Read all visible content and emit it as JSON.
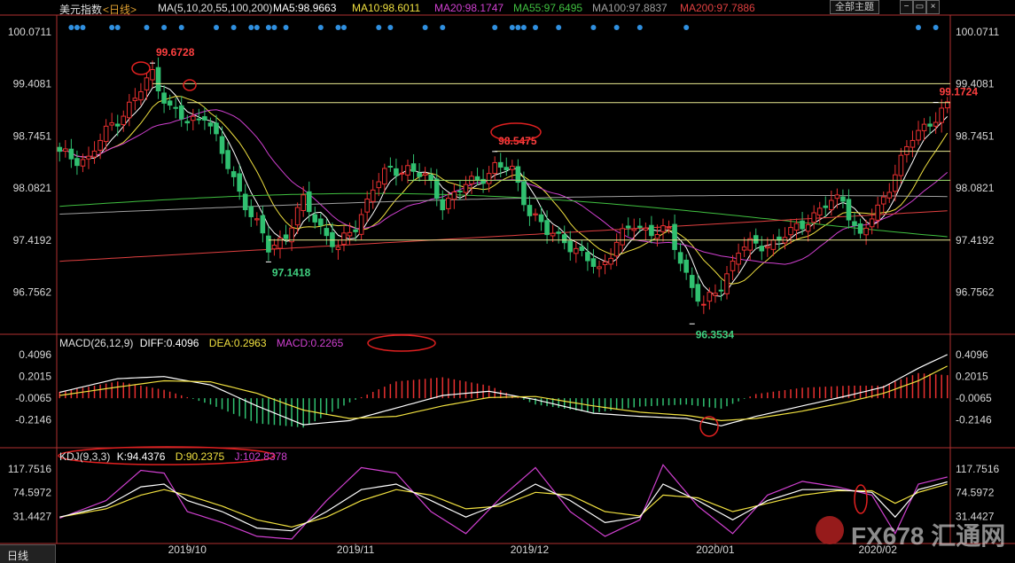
{
  "header": {
    "symbol": "美元指数",
    "period": "<日线>",
    "ma_label": "MA(5,10,20,55,100,200)",
    "ma_values": [
      {
        "text": "MA5:98.9663",
        "color": "#ffffff"
      },
      {
        "text": "MA10:98.6011",
        "color": "#f0e040"
      },
      {
        "text": "MA20:98.1747",
        "color": "#d040d0"
      },
      {
        "text": "MA55:97.6495",
        "color": "#40c040"
      },
      {
        "text": "MA100:97.8837",
        "color": "#a0a0a0"
      },
      {
        "text": "MA200:97.7886",
        "color": "#e04040"
      }
    ],
    "screen_button": "全部主题",
    "window_icons": [
      "minus-icon",
      "close-icon"
    ]
  },
  "colors": {
    "up": "#e83030",
    "down": "#30c070",
    "axis": "#b03030",
    "highlight": "#e02020",
    "hline": "#e8e890",
    "hline_green": "#a0e070"
  },
  "chart_data": [
    {
      "type": "candlestick",
      "title": "美元指数 日线",
      "x_labels": [
        "2019/10",
        "2019/11",
        "2019/12",
        "2020/01",
        "2020/02"
      ],
      "ylim": [
        96.3,
        100.25
      ],
      "y_ticks": [
        "100.0711",
        "99.4081",
        "98.7451",
        "98.0821",
        "97.4192",
        "96.7562"
      ],
      "horizontal_levels": [
        99.41,
        99.17,
        98.55,
        98.18,
        97.42
      ],
      "annotations": [
        {
          "label": "99.6728",
          "value": 99.6728,
          "kind": "high"
        },
        {
          "label": "97.1418",
          "value": 97.1418,
          "kind": "low"
        },
        {
          "label": "98.5475",
          "value": 98.5475,
          "kind": "high"
        },
        {
          "label": "96.3534",
          "value": 96.3534,
          "kind": "low"
        },
        {
          "label": "99.1724",
          "value": 99.1724,
          "kind": "high"
        }
      ],
      "anchors": [
        [
          0,
          98.5
        ],
        [
          5,
          98.45
        ],
        [
          9,
          98.9
        ],
        [
          13,
          99.2
        ],
        [
          16,
          99.55
        ],
        [
          19,
          99.1
        ],
        [
          22,
          98.9
        ],
        [
          25,
          99.05
        ],
        [
          28,
          98.5
        ],
        [
          32,
          97.9
        ],
        [
          36,
          97.3
        ],
        [
          39,
          97.5
        ],
        [
          42,
          97.9
        ],
        [
          45,
          97.6
        ],
        [
          48,
          97.3
        ],
        [
          51,
          97.6
        ],
        [
          54,
          98.1
        ],
        [
          57,
          98.3
        ],
        [
          60,
          98.35
        ],
        [
          63,
          98.2
        ],
        [
          66,
          97.9
        ],
        [
          69,
          98.05
        ],
        [
          72,
          98.2
        ],
        [
          75,
          98.35
        ],
        [
          78,
          98.3
        ],
        [
          81,
          97.8
        ],
        [
          84,
          97.5
        ],
        [
          87,
          97.45
        ],
        [
          90,
          97.2
        ],
        [
          93,
          97.05
        ],
        [
          96,
          97.4
        ],
        [
          99,
          97.6
        ],
        [
          102,
          97.55
        ],
        [
          105,
          97.5
        ],
        [
          108,
          97.0
        ],
        [
          111,
          96.55
        ],
        [
          114,
          96.85
        ],
        [
          117,
          97.3
        ],
        [
          120,
          97.35
        ],
        [
          123,
          97.4
        ],
        [
          126,
          97.5
        ],
        [
          129,
          97.7
        ],
        [
          132,
          97.85
        ],
        [
          135,
          97.95
        ],
        [
          138,
          97.45
        ],
        [
          141,
          97.8
        ],
        [
          144,
          98.3
        ],
        [
          147,
          98.7
        ],
        [
          150,
          98.95
        ],
        [
          153,
          99.1
        ]
      ]
    },
    {
      "type": "line",
      "title": "MACD(26,12,9)",
      "ylim": [
        -0.42,
        0.46
      ],
      "y_ticks": [
        "0.4096",
        "0.2015",
        "-0.0065",
        "-0.2146"
      ],
      "series": [
        {
          "name": "DIFF",
          "last": 0.4096,
          "color": "#ffffff"
        },
        {
          "name": "DEA",
          "last": 0.2963,
          "color": "#f0e040"
        },
        {
          "name": "MACD",
          "last": 0.2265,
          "color": "#d040d0"
        }
      ],
      "diff": [
        [
          0,
          0.05
        ],
        [
          10,
          0.18
        ],
        [
          18,
          0.2
        ],
        [
          26,
          0.12
        ],
        [
          34,
          -0.08
        ],
        [
          42,
          -0.26
        ],
        [
          50,
          -0.22
        ],
        [
          58,
          -0.1
        ],
        [
          66,
          0.02
        ],
        [
          74,
          0.06
        ],
        [
          82,
          -0.02
        ],
        [
          92,
          -0.15
        ],
        [
          100,
          -0.18
        ],
        [
          108,
          -0.2
        ],
        [
          114,
          -0.27
        ],
        [
          120,
          -0.18
        ],
        [
          128,
          -0.08
        ],
        [
          136,
          0.02
        ],
        [
          142,
          0.1
        ],
        [
          148,
          0.28
        ],
        [
          153,
          0.41
        ]
      ],
      "dea": [
        [
          0,
          0.02
        ],
        [
          10,
          0.1
        ],
        [
          18,
          0.16
        ],
        [
          26,
          0.15
        ],
        [
          34,
          0.04
        ],
        [
          42,
          -0.12
        ],
        [
          50,
          -0.2
        ],
        [
          58,
          -0.18
        ],
        [
          66,
          -0.08
        ],
        [
          74,
          0.0
        ],
        [
          82,
          0.01
        ],
        [
          92,
          -0.08
        ],
        [
          100,
          -0.14
        ],
        [
          108,
          -0.17
        ],
        [
          114,
          -0.22
        ],
        [
          120,
          -0.2
        ],
        [
          128,
          -0.13
        ],
        [
          136,
          -0.04
        ],
        [
          142,
          0.04
        ],
        [
          148,
          0.16
        ],
        [
          153,
          0.3
        ]
      ]
    },
    {
      "type": "line",
      "title": "KDJ(9,3,3)",
      "ylim": [
        -10,
        132
      ],
      "y_ticks": [
        "117.7516",
        "74.5972",
        "31.4427"
      ],
      "series": [
        {
          "name": "K",
          "last": 94.4376,
          "color": "#ffffff"
        },
        {
          "name": "D",
          "last": 90.2375,
          "color": "#f0e040"
        },
        {
          "name": "J",
          "last": 102.8378,
          "color": "#d040d0"
        }
      ],
      "k": [
        [
          0,
          30
        ],
        [
          8,
          50
        ],
        [
          14,
          85
        ],
        [
          18,
          90
        ],
        [
          22,
          60
        ],
        [
          28,
          40
        ],
        [
          34,
          10
        ],
        [
          40,
          5
        ],
        [
          46,
          40
        ],
        [
          52,
          80
        ],
        [
          58,
          90
        ],
        [
          64,
          60
        ],
        [
          70,
          30
        ],
        [
          76,
          55
        ],
        [
          82,
          90
        ],
        [
          88,
          60
        ],
        [
          94,
          20
        ],
        [
          100,
          30
        ],
        [
          104,
          90
        ],
        [
          110,
          60
        ],
        [
          116,
          25
        ],
        [
          122,
          60
        ],
        [
          128,
          80
        ],
        [
          134,
          80
        ],
        [
          140,
          75
        ],
        [
          144,
          30
        ],
        [
          148,
          80
        ],
        [
          153,
          94
        ]
      ],
      "d": [
        [
          0,
          30
        ],
        [
          8,
          45
        ],
        [
          14,
          70
        ],
        [
          18,
          80
        ],
        [
          22,
          70
        ],
        [
          28,
          50
        ],
        [
          34,
          25
        ],
        [
          40,
          12
        ],
        [
          46,
          30
        ],
        [
          52,
          60
        ],
        [
          58,
          80
        ],
        [
          64,
          70
        ],
        [
          70,
          45
        ],
        [
          76,
          50
        ],
        [
          82,
          75
        ],
        [
          88,
          70
        ],
        [
          94,
          40
        ],
        [
          100,
          32
        ],
        [
          104,
          70
        ],
        [
          110,
          65
        ],
        [
          116,
          40
        ],
        [
          122,
          55
        ],
        [
          128,
          70
        ],
        [
          134,
          78
        ],
        [
          140,
          78
        ],
        [
          144,
          55
        ],
        [
          148,
          75
        ],
        [
          153,
          90
        ]
      ],
      "j": [
        [
          0,
          28
        ],
        [
          8,
          60
        ],
        [
          14,
          115
        ],
        [
          18,
          110
        ],
        [
          22,
          40
        ],
        [
          28,
          20
        ],
        [
          34,
          -5
        ],
        [
          40,
          -10
        ],
        [
          46,
          60
        ],
        [
          52,
          120
        ],
        [
          58,
          110
        ],
        [
          64,
          40
        ],
        [
          70,
          0
        ],
        [
          76,
          65
        ],
        [
          82,
          120
        ],
        [
          88,
          40
        ],
        [
          94,
          -5
        ],
        [
          100,
          25
        ],
        [
          104,
          125
        ],
        [
          110,
          50
        ],
        [
          116,
          0
        ],
        [
          122,
          70
        ],
        [
          128,
          95
        ],
        [
          134,
          85
        ],
        [
          140,
          70
        ],
        [
          144,
          0
        ],
        [
          148,
          90
        ],
        [
          153,
          103
        ]
      ]
    }
  ],
  "footer": {
    "period_tab": "日线",
    "watermark": "FX678 汇通网"
  }
}
